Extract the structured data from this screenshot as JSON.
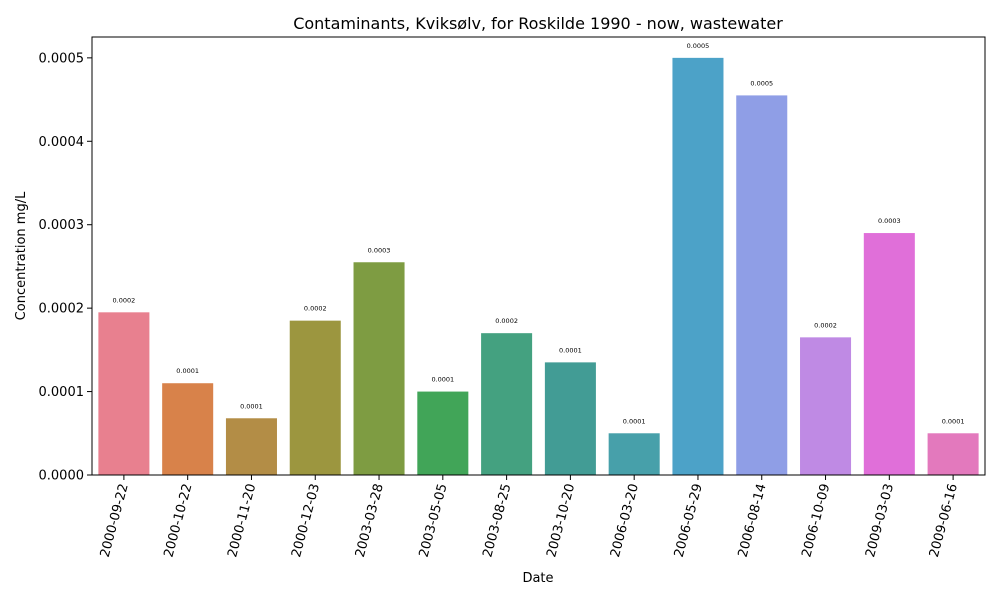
{
  "chart_data": {
    "type": "bar",
    "title": "Contaminants, Kviksølv, for Roskilde 1990 - now, wastewater",
    "xlabel": "Date",
    "ylabel": "Concentration mg/L",
    "ylim": [
      0,
      0.000525
    ],
    "yticks": [
      "0.0000",
      "0.0001",
      "0.0002",
      "0.0003",
      "0.0004",
      "0.0005"
    ],
    "ytick_values": [
      0,
      0.0001,
      0.0002,
      0.0003,
      0.0004,
      0.0005
    ],
    "categories": [
      "2000-09-22",
      "2000-10-22",
      "2000-11-20",
      "2000-12-03",
      "2003-03-28",
      "2003-05-05",
      "2003-08-25",
      "2003-10-20",
      "2006-03-20",
      "2006-05-29",
      "2006-08-14",
      "2006-10-09",
      "2009-03-03",
      "2009-06-16"
    ],
    "values": [
      0.000195,
      0.00011,
      6.8e-05,
      0.000185,
      0.000255,
      0.0001,
      0.00017,
      0.000135,
      5e-05,
      0.0005,
      0.000455,
      0.000165,
      0.00029,
      5e-05
    ],
    "bar_labels": [
      "0.0002",
      "0.0001",
      "0.0001",
      "0.0002",
      "0.0003",
      "0.0001",
      "0.0002",
      "0.0001",
      "0.0001",
      "0.0005",
      "0.0005",
      "0.0002",
      "0.0003",
      "0.0001"
    ],
    "colors": [
      "#e8808f",
      "#d8824a",
      "#b38d46",
      "#9c963f",
      "#7e9c42",
      "#41a558",
      "#44a180",
      "#429c95",
      "#47a0aa",
      "#4ca2c8",
      "#8f9ee6",
      "#bf8ae4",
      "#e06fd9",
      "#e379bd"
    ],
    "grid": false,
    "legend": "none"
  }
}
